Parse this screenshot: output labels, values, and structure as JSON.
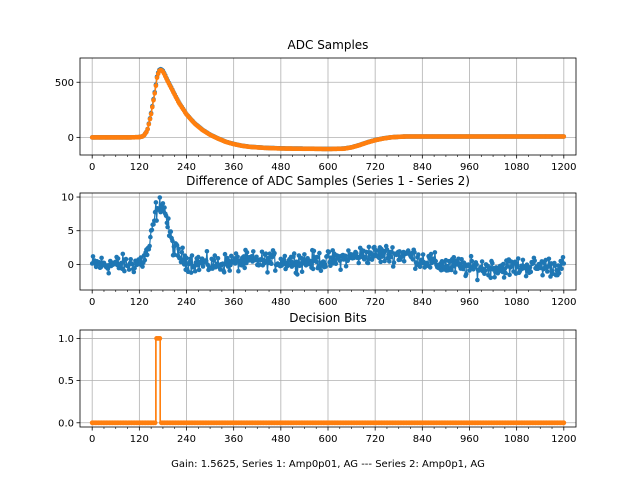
{
  "figure": {
    "xlabel": "Gain: 1.5625, Series 1: Amp0p01, AG --- Series 2: Amp0p1, AG"
  },
  "colors": {
    "blue": "#1f77b4",
    "orange": "#ff7f0e",
    "grid": "#b0b0b0"
  },
  "chart_data": [
    {
      "type": "line",
      "title": "ADC Samples",
      "xlim": [
        -31,
        1231
      ],
      "ylim": [
        -160,
        720
      ],
      "xticks": [
        "0",
        "120",
        "240",
        "360",
        "480",
        "600",
        "720",
        "840",
        "960",
        "1080",
        "1200"
      ],
      "yticks": [
        "0",
        "500"
      ],
      "series": [
        {
          "name": "Series 1",
          "color": "#1f77b4",
          "x": [
            0,
            100,
            120,
            130,
            140,
            150,
            160,
            165,
            170,
            175,
            180,
            185,
            190,
            200,
            210,
            220,
            240,
            260,
            280,
            300,
            320,
            340,
            360,
            380,
            400,
            440,
            480,
            520,
            560,
            600,
            640,
            660,
            680,
            700,
            720,
            740,
            760,
            780,
            800,
            840,
            900,
            960,
            1020,
            1080,
            1140,
            1200
          ],
          "y": [
            0,
            0,
            2,
            10,
            60,
            220,
            430,
            550,
            610,
            620,
            605,
            570,
            530,
            460,
            390,
            320,
            210,
            130,
            70,
            25,
            -10,
            -40,
            -60,
            -75,
            -85,
            -95,
            -100,
            -102,
            -103,
            -105,
            -102,
            -90,
            -70,
            -45,
            -25,
            -10,
            0,
            5,
            8,
            8,
            8,
            8,
            8,
            8,
            8,
            8
          ]
        },
        {
          "name": "Series 2",
          "color": "#ff7f0e",
          "x": [
            0,
            100,
            120,
            130,
            140,
            150,
            160,
            165,
            170,
            175,
            180,
            185,
            190,
            200,
            210,
            220,
            240,
            260,
            280,
            300,
            320,
            340,
            360,
            380,
            400,
            440,
            480,
            520,
            560,
            600,
            640,
            660,
            680,
            700,
            720,
            740,
            760,
            780,
            800,
            840,
            900,
            960,
            1020,
            1080,
            1140,
            1200
          ],
          "y": [
            0,
            0,
            2,
            10,
            58,
            212,
            420,
            540,
            602,
            612,
            597,
            563,
            524,
            455,
            386,
            317,
            208,
            128,
            68,
            23,
            -11,
            -41,
            -61,
            -76,
            -86,
            -96,
            -101,
            -103,
            -104,
            -106,
            -103,
            -91,
            -71,
            -46,
            -26,
            -11,
            0,
            5,
            8,
            8,
            8,
            8,
            8,
            8,
            8,
            8
          ]
        }
      ]
    },
    {
      "type": "scatter",
      "title": "Difference of ADC Samples (Series 1 - Series 2)",
      "series_name": "Series 1 - Series 2",
      "xlim": [
        -31,
        1231
      ],
      "ylim": [
        -3.8,
        10.6
      ],
      "xticks": [
        "0",
        "120",
        "240",
        "360",
        "480",
        "600",
        "720",
        "840",
        "960",
        "1080",
        "1200"
      ],
      "yticks": [
        "0",
        "5",
        "10"
      ],
      "trend": {
        "color": "#1f77b4",
        "x": [
          0,
          100,
          130,
          145,
          155,
          162,
          168,
          175,
          185,
          195,
          210,
          240,
          300,
          400,
          500,
          600,
          700,
          760,
          800,
          840,
          880,
          960,
          1040,
          1100,
          1200
        ],
        "y": [
          0,
          0,
          0.5,
          2.5,
          5.5,
          8,
          7.5,
          9.5,
          8,
          5,
          2,
          0.5,
          0,
          0.5,
          0.5,
          0.5,
          1.5,
          1.5,
          1.5,
          0.7,
          0,
          -0.5,
          -0.5,
          -0.3,
          -0.3
        ]
      },
      "noise_amplitude": 1.0
    },
    {
      "type": "line",
      "title": "Decision Bits",
      "xlim": [
        -31,
        1231
      ],
      "ylim": [
        -0.05,
        1.1
      ],
      "xticks": [
        "0",
        "120",
        "240",
        "360",
        "480",
        "600",
        "720",
        "840",
        "960",
        "1080",
        "1200"
      ],
      "yticks": [
        "0.0",
        "0.5",
        "1.0"
      ],
      "series": [
        {
          "name": "Decision Bits",
          "color": "#ff7f0e",
          "x": [
            0,
            162,
            162,
            173,
            173,
            1200
          ],
          "y": [
            0,
            0,
            1,
            1,
            0,
            0
          ]
        }
      ]
    }
  ]
}
